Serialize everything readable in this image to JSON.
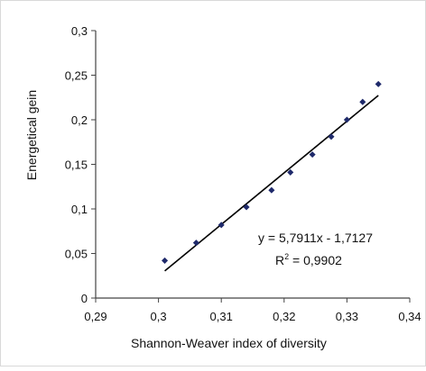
{
  "chart_data": {
    "type": "scatter",
    "title": "",
    "xlabel": "Shannon-Weaver index of diversity",
    "ylabel": "Energetical gein",
    "xlim": [
      0.29,
      0.34
    ],
    "ylim": [
      0,
      0.3
    ],
    "x_ticks": [
      "0,29",
      "0,3",
      "0,31",
      "0,32",
      "0,33",
      "0,34"
    ],
    "y_ticks": [
      "0",
      "0,05",
      "0,1",
      "0,15",
      "0,2",
      "0,25",
      "0,3"
    ],
    "x_tick_values": [
      0.29,
      0.3,
      0.31,
      0.32,
      0.33,
      0.34
    ],
    "y_tick_values": [
      0,
      0.05,
      0.1,
      0.15,
      0.2,
      0.25,
      0.3
    ],
    "grid": false,
    "legend": false,
    "series": [
      {
        "marker_color": "#1f2a6b",
        "x": [
          0.301,
          0.306,
          0.31,
          0.314,
          0.318,
          0.321,
          0.3245,
          0.3275,
          0.33,
          0.3325,
          0.335
        ],
        "y": [
          0.042,
          0.062,
          0.082,
          0.102,
          0.121,
          0.141,
          0.161,
          0.181,
          0.2,
          0.22,
          0.24
        ]
      }
    ],
    "trendline": {
      "slope": 5.7911,
      "intercept": -1.7127,
      "x_range": [
        0.301,
        0.335
      ],
      "color": "#000000"
    },
    "annotations": {
      "equation": "y = 5,7911x - 1,7127",
      "r2_prefix": "R",
      "r2_sup": "2",
      "r2_suffix": " = 0,9902"
    }
  }
}
